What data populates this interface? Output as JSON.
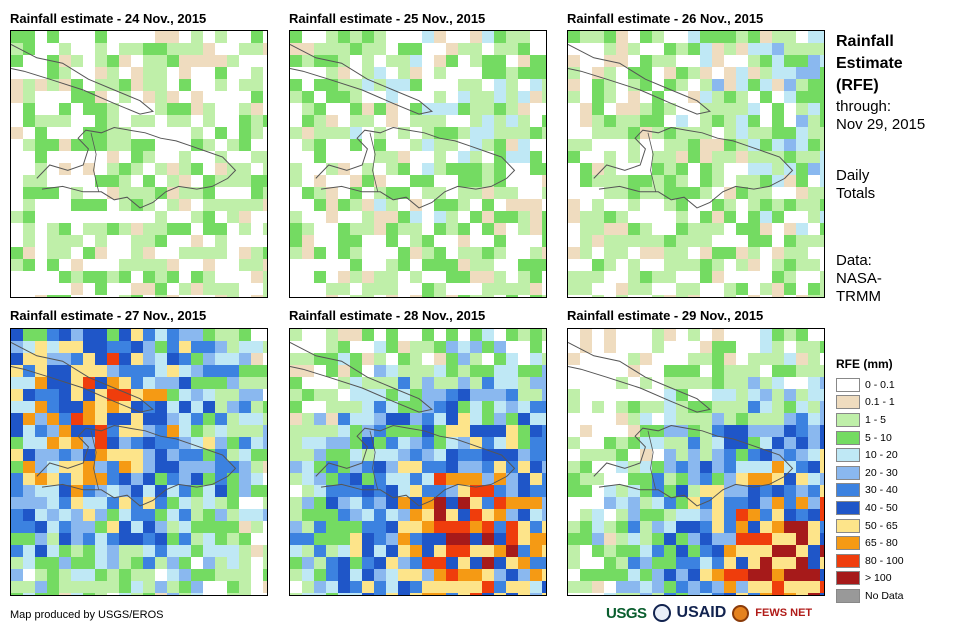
{
  "panels": [
    {
      "title": "Rainfall estimate - 24 Nov., 2015",
      "wetness": 0.05,
      "center": [
        0.3,
        0.35
      ]
    },
    {
      "title": "Rainfall estimate - 25 Nov., 2015",
      "wetness": 0.12,
      "center": [
        0.6,
        0.18
      ]
    },
    {
      "title": "Rainfall estimate - 26 Nov., 2015",
      "wetness": 0.18,
      "center": [
        0.9,
        0.15
      ]
    },
    {
      "title": "Rainfall estimate - 27 Nov., 2015",
      "wetness": 0.55,
      "center": [
        0.3,
        0.3
      ]
    },
    {
      "title": "Rainfall estimate - 28 Nov., 2015",
      "wetness": 0.6,
      "center": [
        0.65,
        0.75
      ]
    },
    {
      "title": "Rainfall estimate - 29 Nov., 2015",
      "wetness": 0.65,
      "center": [
        0.85,
        0.85
      ]
    }
  ],
  "sidebar": {
    "title_line1": "Rainfall",
    "title_line2": "Estimate",
    "title_line3": "(RFE)",
    "through_label": "through:",
    "through_date": "Nov 29, 2015",
    "totals_line1": "Daily",
    "totals_line2": "Totals",
    "data_line1": "Data:",
    "data_line2": "NASA-",
    "data_line3": "TRMM"
  },
  "legend": {
    "title": "RFE (mm)",
    "items": [
      {
        "label": "0 - 0.1",
        "color": "#ffffff"
      },
      {
        "label": "0.1 - 1",
        "color": "#efdcbf"
      },
      {
        "label": "1 - 5",
        "color": "#bfefa9"
      },
      {
        "label": "5 - 10",
        "color": "#74db62"
      },
      {
        "label": "10 - 20",
        "color": "#bfe8f5"
      },
      {
        "label": "20 - 30",
        "color": "#8ab8ef"
      },
      {
        "label": "30 - 40",
        "color": "#3c82e0"
      },
      {
        "label": "40 - 50",
        "color": "#1f56c8"
      },
      {
        "label": "50 - 65",
        "color": "#fde48a"
      },
      {
        "label": "65 - 80",
        "color": "#f59a14"
      },
      {
        "label": "80 - 100",
        "color": "#ef3d0c"
      },
      {
        "label": "> 100",
        "color": "#a61a1a"
      },
      {
        "label": "No Data",
        "color": "#999999"
      }
    ]
  },
  "footer": {
    "credit": "Map produced by USGS/EROS",
    "logo_usgs": "USGS",
    "logo_usaid": "USAID",
    "logo_fews": "FEWS NET"
  }
}
